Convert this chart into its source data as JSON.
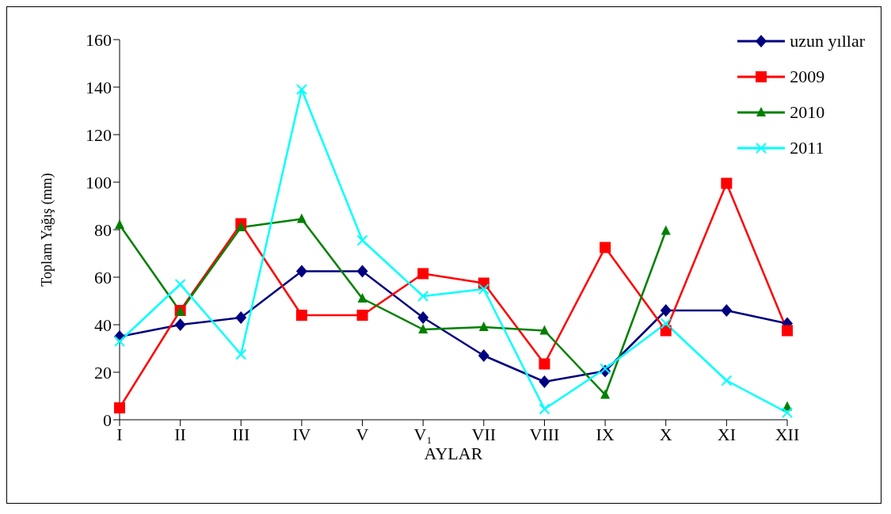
{
  "chart_data": {
    "type": "line",
    "xlabel": "AYLAR",
    "ylabel": "Toplam Yağış  (mm)",
    "categories": [
      "I",
      "II",
      "III",
      "IV",
      "V",
      "V₁",
      "VII",
      "VIII",
      "IX",
      "X",
      "XI",
      "XII"
    ],
    "series": [
      {
        "name": "uzun yıllar",
        "color": "#000080",
        "marker": "diamond",
        "values": [
          35,
          40,
          43,
          62.5,
          62.5,
          43,
          27,
          16,
          20.5,
          46,
          46,
          40.5
        ]
      },
      {
        "name": "2009",
        "color": "#ff0000",
        "marker": "square",
        "values": [
          5,
          46,
          82.5,
          44,
          44,
          61.5,
          57.5,
          23.5,
          72.5,
          37.5,
          99.5,
          37.5
        ]
      },
      {
        "name": "2010",
        "color": "#008000",
        "marker": "triangle",
        "values": [
          82,
          45.5,
          81,
          84.5,
          51,
          38,
          39,
          37.5,
          10.5,
          79.5,
          null,
          5.5
        ]
      },
      {
        "name": "2011",
        "color": "#00ffff",
        "marker": "cross",
        "values": [
          33,
          57,
          27.5,
          139,
          75.5,
          52,
          55,
          4.5,
          21.5,
          40.5,
          16.5,
          3
        ]
      }
    ],
    "ylim": [
      0,
      160
    ],
    "yticks": [
      0,
      20,
      40,
      60,
      80,
      100,
      120,
      140,
      160
    ],
    "grid": false,
    "legend": "top right",
    "line_style": "solid"
  }
}
